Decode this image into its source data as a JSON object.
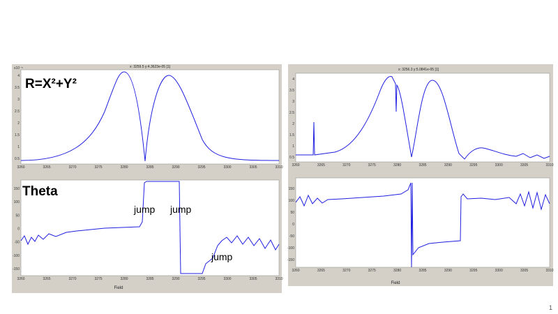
{
  "left": {
    "header": "x: 3259.5  y:4.3623e-05 [1]",
    "top": {
      "label": "R=X²+Y²",
      "exponent": "x10⁻⁵",
      "yticks": [
        "4",
        "3.5",
        "3",
        "2.5",
        "2",
        "1.5",
        "1",
        "0.5"
      ],
      "xticks": [
        "3260",
        "3265",
        "3270",
        "3275",
        "3280",
        "3285",
        "3290",
        "3295",
        "3300",
        "3305",
        "3310"
      ]
    },
    "bottom": {
      "label": "Theta",
      "jumps": [
        "jump",
        "jump",
        "jump"
      ],
      "yticks": [
        "150",
        "100",
        "50",
        "0",
        "-50",
        "-100",
        "-150"
      ],
      "xticks": [
        "3260",
        "3265",
        "3270",
        "3275",
        "3280",
        "3285",
        "3290",
        "3295",
        "3300",
        "3305",
        "3310"
      ],
      "xlabel": "Field"
    }
  },
  "right": {
    "header": "x: 3256.3  y:5.0841e-05 [1]",
    "top": {
      "yticks": [
        "4",
        "3.5",
        "3",
        "2.5",
        "2",
        "1.5",
        "1",
        "0.5"
      ],
      "xticks": [
        "3260",
        "3265",
        "3270",
        "3275",
        "3280",
        "3285",
        "3290",
        "3295",
        "3300",
        "3305",
        "3310"
      ]
    },
    "bottom": {
      "yticks": [
        "150",
        "100",
        "50",
        "0",
        "-50",
        "-100",
        "-150"
      ],
      "xticks": [
        "3260",
        "3265",
        "3270",
        "3275",
        "3280",
        "3285",
        "3290",
        "3295",
        "3300",
        "3305",
        "3310"
      ],
      "xlabel": "Field"
    }
  },
  "page_number": "1"
}
